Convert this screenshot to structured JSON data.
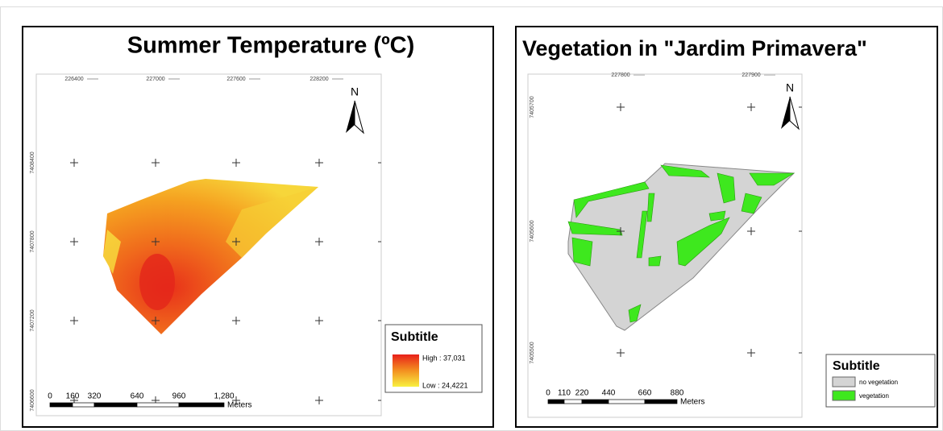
{
  "maps": [
    {
      "title": "Summer Temperature (ºC)",
      "x_ticks": [
        "226400",
        "227000",
        "227600",
        "228200"
      ],
      "y_ticks": [
        "7408400",
        "7407800",
        "7407200",
        "7406600"
      ],
      "north": "N",
      "scale": {
        "labels": [
          "0",
          "160",
          "320",
          "640",
          "960",
          "1,280"
        ],
        "unit": "Meters"
      },
      "legend": {
        "title": "Subtitle",
        "high": "High : 37,031",
        "low": "Low : 24,4221"
      }
    },
    {
      "title": "Vegetation in \"Jardim Primavera\"",
      "x_ticks": [
        "227800",
        "227900"
      ],
      "y_ticks": [
        "7405700",
        "7405600",
        "7405500"
      ],
      "north": "N",
      "scale": {
        "labels": [
          "0",
          "110",
          "220",
          "440",
          "660",
          "880"
        ],
        "unit": "Meters"
      },
      "legend": {
        "title": "Subtitle",
        "items": [
          "no vegetation",
          "vegetation"
        ]
      }
    }
  ]
}
